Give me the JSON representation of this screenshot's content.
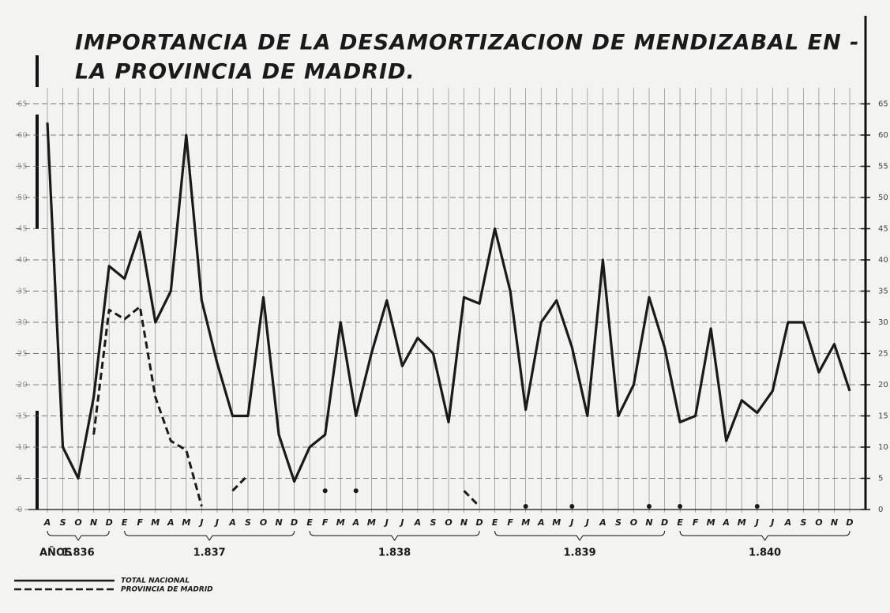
{
  "chart_data": {
    "type": "line",
    "title": [
      "IMPORTANCIA DE LA DESAMORTIZACION DE MENDIZABAL EN -",
      "LA PROVINCIA DE MADRID."
    ],
    "categories": [
      "A",
      "S",
      "O",
      "N",
      "D",
      "E",
      "F",
      "M",
      "A",
      "M",
      "J",
      "J",
      "A",
      "S",
      "O",
      "N",
      "D",
      "E",
      "F",
      "M",
      "A",
      "M",
      "J",
      "J",
      "A",
      "S",
      "O",
      "N",
      "D",
      "E",
      "F",
      "M",
      "A",
      "M",
      "J",
      "J",
      "A",
      "S",
      "O",
      "N",
      "D",
      "E",
      "F",
      "M",
      "A",
      "M",
      "J",
      "J",
      "A",
      "S",
      "O",
      "N",
      "D"
    ],
    "x_group_title": "AÑOS",
    "years": [
      "1.836",
      "1.837",
      "1.838",
      "1.839",
      "1.840"
    ],
    "series": [
      {
        "name": "TOTAL NACIONAL",
        "color": "#1a1a1a",
        "dash": false,
        "values": [
          62,
          10,
          5,
          18,
          39,
          37,
          44.5,
          30,
          35,
          60,
          33.5,
          23.5,
          15,
          15,
          34,
          12,
          4.5,
          10,
          12,
          30,
          15,
          25,
          33.5,
          23,
          27.5,
          25,
          14,
          34,
          33,
          45,
          35,
          16,
          30,
          33.5,
          26,
          15,
          40,
          15,
          20,
          34,
          26,
          14,
          15,
          29,
          11,
          17.5,
          15.5,
          19,
          30,
          30,
          22,
          26.5,
          19
        ]
      },
      {
        "name": "PROVINCIA DE MADRID",
        "color": "#1a1a1a",
        "dash": true,
        "values": [
          null,
          null,
          null,
          12,
          32,
          30.5,
          32.5,
          18,
          11,
          9.5,
          0.5,
          null,
          3,
          5.5,
          null,
          null,
          null,
          null,
          3,
          null,
          3,
          null,
          null,
          null,
          null,
          null,
          null,
          3,
          0.5,
          null,
          null,
          0.5,
          null,
          null,
          0.5,
          null,
          null,
          null,
          null,
          0.5,
          null,
          0.5,
          null,
          null,
          null,
          null,
          0.5,
          null,
          null,
          null,
          null,
          null,
          null
        ]
      }
    ],
    "ylim": [
      0,
      65
    ],
    "yticks": [
      0,
      5,
      10,
      15,
      20,
      25,
      30,
      35,
      40,
      45,
      50,
      55,
      60,
      65
    ],
    "grid": true
  }
}
